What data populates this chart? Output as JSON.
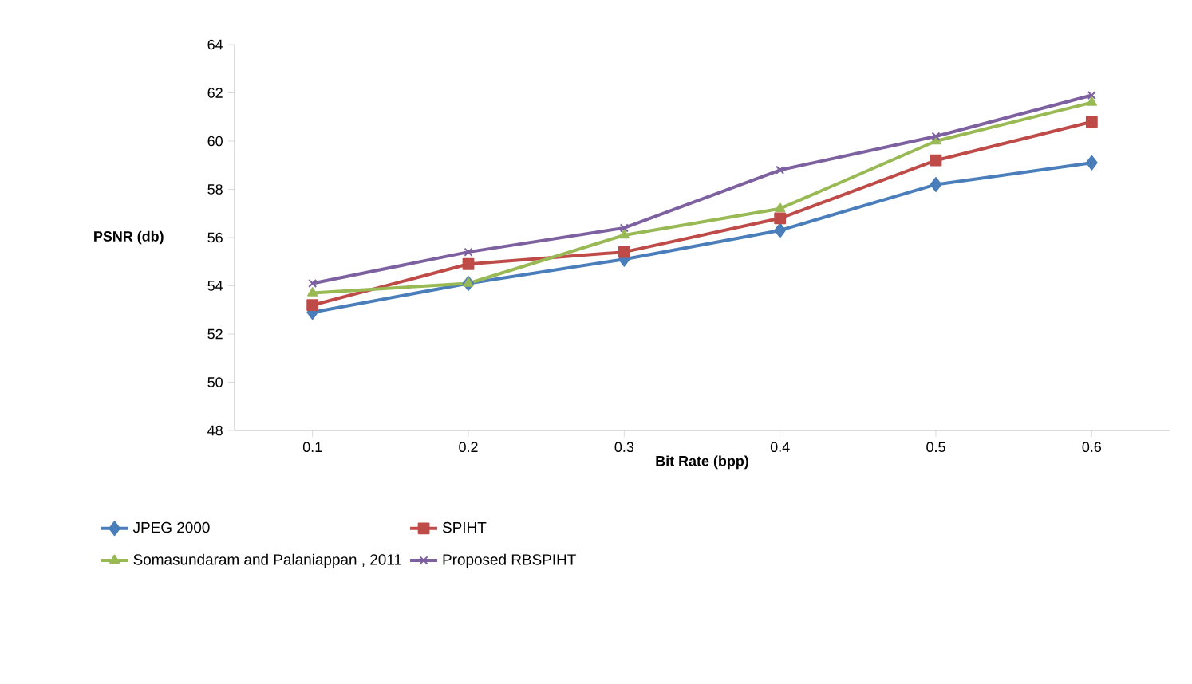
{
  "chart_data": {
    "type": "line",
    "xlabel": "Bit Rate (bpp)",
    "ylabel": "PSNR (db)",
    "categories": [
      "0.1",
      "0.2",
      "0.3",
      "0.4",
      "0.5",
      "0.6"
    ],
    "ylim": [
      48,
      64
    ],
    "yticks": [
      48,
      50,
      52,
      54,
      56,
      58,
      60,
      62,
      64
    ],
    "grid": false,
    "legend": "bottom",
    "series": [
      {
        "name": "JPEG 2000",
        "color": "#4a7ebb",
        "marker": "diamond",
        "values": [
          52.9,
          54.1,
          55.1,
          56.3,
          58.2,
          59.1
        ]
      },
      {
        "name": "SPIHT",
        "color": "#be4b48",
        "marker": "square",
        "values": [
          53.2,
          54.9,
          55.4,
          56.8,
          59.2,
          60.8
        ]
      },
      {
        "name": "Somasundaram and Palaniappan , 2011",
        "color": "#98b954",
        "marker": "triangle",
        "values": [
          53.7,
          54.1,
          56.1,
          57.2,
          60.0,
          61.6
        ]
      },
      {
        "name": "Proposed RBSPIHT",
        "color": "#7d60a0",
        "marker": "cross",
        "values": [
          54.1,
          55.4,
          56.4,
          58.8,
          60.2,
          61.9
        ]
      }
    ]
  }
}
